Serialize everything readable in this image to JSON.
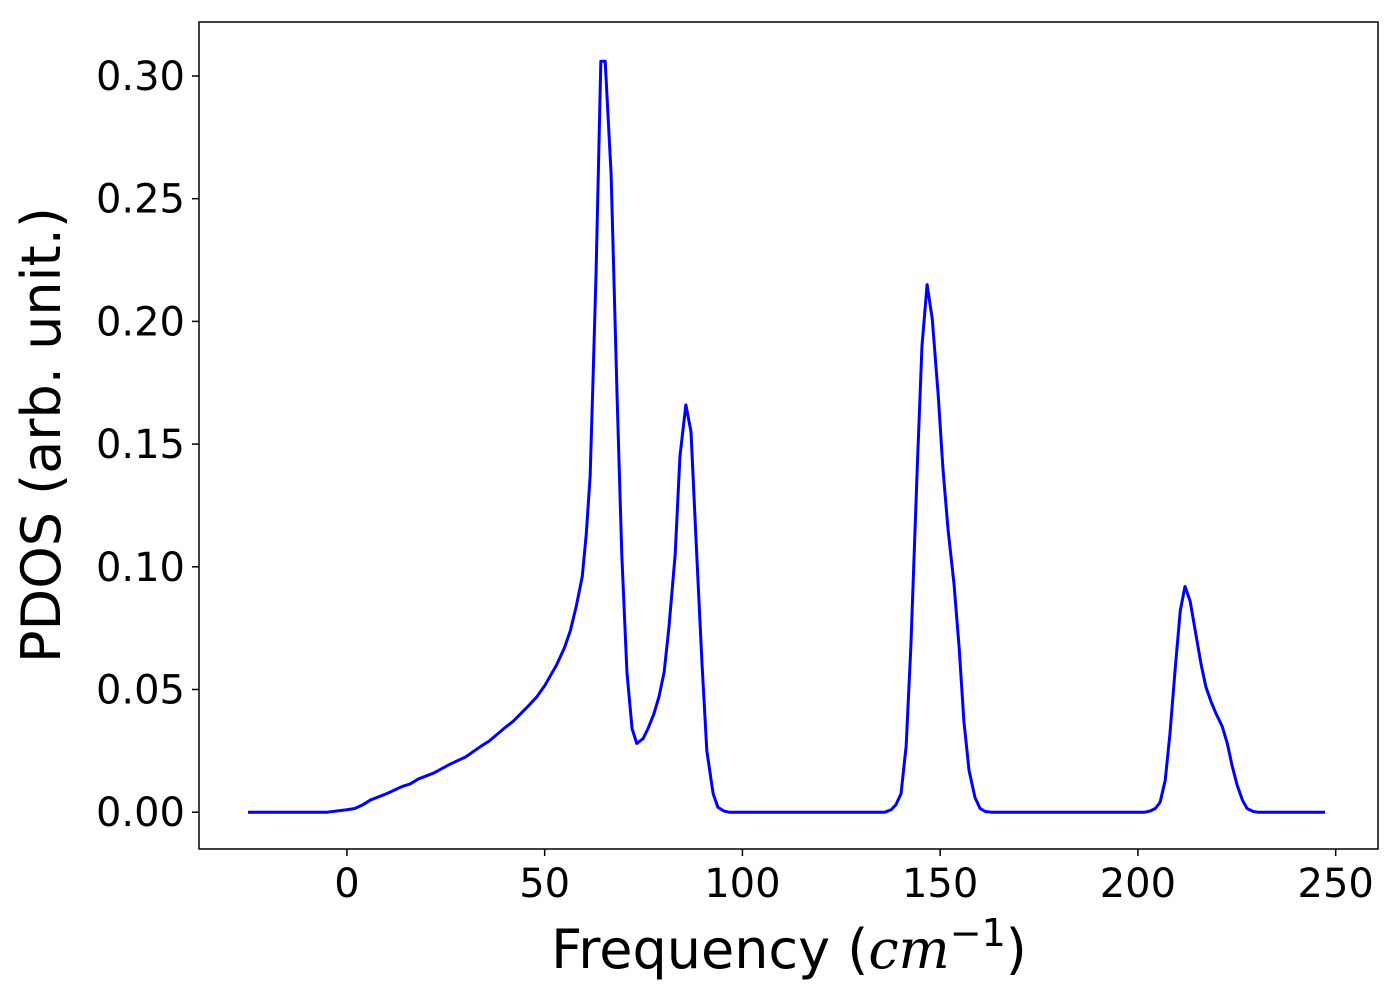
{
  "chart_data": {
    "type": "line",
    "xlabel": [
      "Frequency (",
      "cm",
      "−1",
      ")"
    ],
    "ylabel": "PDOS (arb. unit.)",
    "xlim": [
      -37.4,
      260.7
    ],
    "ylim": [
      -0.015,
      0.322
    ],
    "xticks": [
      0,
      50,
      100,
      150,
      200,
      250
    ],
    "yticks": [
      {
        "value": 0,
        "label": "0.00"
      },
      {
        "value": 0.05,
        "label": "0.05"
      },
      {
        "value": 0.1,
        "label": "0.10"
      },
      {
        "value": 0.15,
        "label": "0.15"
      },
      {
        "value": 0.2,
        "label": "0.20"
      },
      {
        "value": 0.25,
        "label": "0.25"
      },
      {
        "value": 0.3,
        "label": "0.30"
      }
    ],
    "grid": false,
    "series": [
      {
        "color": "#0000ff",
        "x": [
          -25,
          -5,
          0,
          2,
          4,
          6,
          10,
          14,
          16,
          18,
          22,
          26,
          30,
          34,
          36,
          40,
          42,
          46,
          48,
          50,
          53,
          55,
          56.5,
          58,
          59.5,
          60.5,
          61.5,
          62.2,
          63,
          63.7,
          64.2,
          65.3,
          66.8,
          68.3,
          69.5,
          70.8,
          72.1,
          73.3,
          74.9,
          76.1,
          77.6,
          78.9,
          80.2,
          81.4,
          83,
          84.2,
          85.7,
          87,
          88.3,
          89.8,
          91,
          92.6,
          93.8,
          95.3,
          96.6,
          136,
          137.6,
          138.8,
          140.1,
          141.4,
          142.6,
          144.2,
          145.4,
          146.7,
          148,
          149.5,
          150.7,
          152,
          153.5,
          154.8,
          156,
          157.3,
          158.8,
          160.1,
          161.4,
          162.9,
          201.8,
          203.1,
          204.4,
          205.6,
          206.9,
          208.1,
          209.4,
          210.7,
          211.9,
          213.2,
          214.7,
          216,
          217.2,
          218.5,
          219.8,
          221.3,
          222.6,
          223.8,
          225.1,
          226.4,
          227.6,
          229.1,
          230.4,
          247.3
        ],
        "values": [
          0,
          0,
          0.001,
          0.0015,
          0.003,
          0.005,
          0.0075,
          0.0105,
          0.0115,
          0.0135,
          0.016,
          0.0195,
          0.0225,
          0.027,
          0.029,
          0.0345,
          0.037,
          0.0435,
          0.047,
          0.0515,
          0.06,
          0.067,
          0.074,
          0.084,
          0.096,
          0.113,
          0.137,
          0.175,
          0.22,
          0.27,
          0.306,
          0.306,
          0.26,
          0.17,
          0.105,
          0.057,
          0.034,
          0.028,
          0.03,
          0.034,
          0.04,
          0.047,
          0.057,
          0.075,
          0.105,
          0.145,
          0.166,
          0.155,
          0.11,
          0.06,
          0.025,
          0.0075,
          0.002,
          0.0005,
          0,
          0,
          0.001,
          0.003,
          0.0075,
          0.027,
          0.068,
          0.14,
          0.19,
          0.215,
          0.201,
          0.17,
          0.14,
          0.115,
          0.093,
          0.067,
          0.037,
          0.017,
          0.006,
          0.0015,
          0.0003,
          0,
          0,
          0.0005,
          0.0015,
          0.004,
          0.013,
          0.032,
          0.058,
          0.082,
          0.092,
          0.086,
          0.072,
          0.06,
          0.051,
          0.045,
          0.04,
          0.035,
          0.028,
          0.019,
          0.011,
          0.005,
          0.0015,
          0.0003,
          0,
          0
        ]
      }
    ]
  }
}
